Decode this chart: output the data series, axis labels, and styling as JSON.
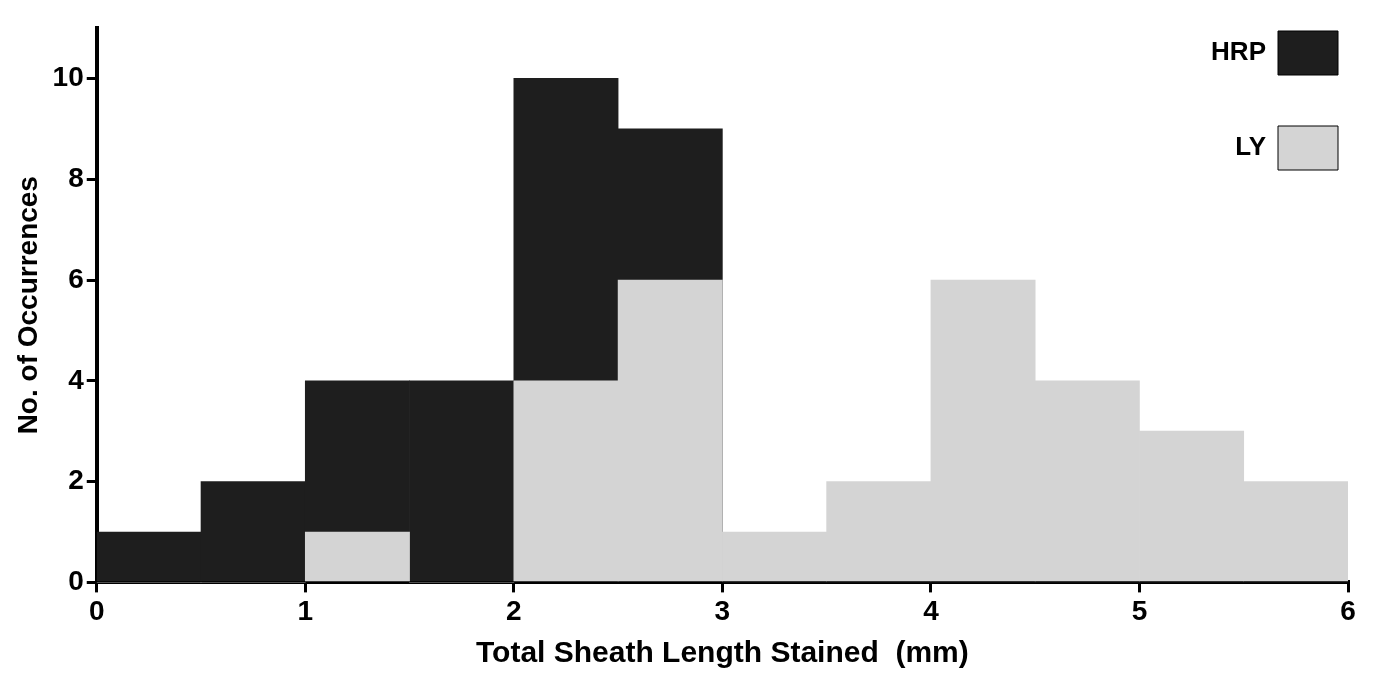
{
  "chart_data": {
    "type": "histogram",
    "xlabel": "Total Sheath Length Stained  (mm)",
    "ylabel": "No. of Occurrences",
    "bins": [
      0,
      0.5,
      1,
      1.5,
      2,
      2.5,
      3,
      3.5,
      4,
      4.5,
      5,
      5.5,
      6
    ],
    "series": [
      {
        "name": "HRP",
        "color": "#1e1e1e",
        "values": [
          1,
          2,
          4,
          4,
          10,
          9,
          0,
          0,
          0,
          0,
          0,
          0
        ]
      },
      {
        "name": "LY",
        "color": "#d4d4d4",
        "values": [
          0,
          0,
          1,
          0,
          4,
          6,
          1,
          2,
          6,
          4,
          3,
          2
        ]
      }
    ],
    "xlim": [
      0,
      6
    ],
    "xticks": [
      0,
      1,
      2,
      3,
      4,
      5,
      6
    ],
    "ylim": [
      0,
      11
    ],
    "yticks": [
      0,
      2,
      4,
      6,
      8,
      10
    ],
    "grid": false,
    "legend": "top right"
  }
}
